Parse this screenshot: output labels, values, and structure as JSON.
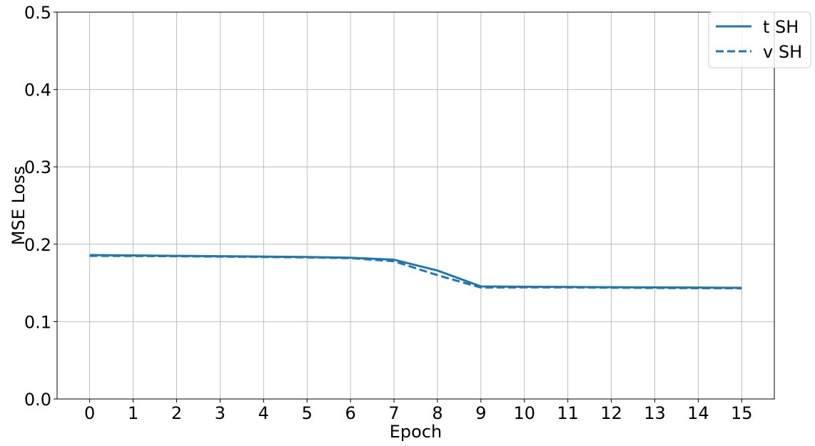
{
  "chart_data": {
    "type": "line",
    "title": "",
    "xlabel": "Epoch",
    "ylabel": "MSE Loss",
    "x": [
      0,
      1,
      2,
      3,
      4,
      5,
      6,
      7,
      8,
      9,
      10,
      11,
      12,
      13,
      14,
      15
    ],
    "x_tick_labels": [
      "0",
      "1",
      "2",
      "3",
      "4",
      "5",
      "6",
      "7",
      "8",
      "9",
      "10",
      "11",
      "12",
      "13",
      "14",
      "15"
    ],
    "y_ticks": [
      0.0,
      0.1,
      0.2,
      0.3,
      0.4,
      0.5
    ],
    "y_tick_labels": [
      "0.0",
      "0.1",
      "0.2",
      "0.3",
      "0.4",
      "0.5"
    ],
    "xlim": [
      -0.75,
      15.75
    ],
    "ylim": [
      0.0,
      0.5
    ],
    "grid": true,
    "legend_position": "top-right",
    "series": [
      {
        "name": "t SH",
        "style": "solid",
        "color": "#1f77b4",
        "values": [
          0.186,
          0.1855,
          0.185,
          0.1845,
          0.184,
          0.1835,
          0.1825,
          0.18,
          0.166,
          0.1455,
          0.145,
          0.1448,
          0.1445,
          0.1442,
          0.144,
          0.1437
        ]
      },
      {
        "name": "v SH",
        "style": "dashed",
        "color": "#1f77b4",
        "values": [
          0.185,
          0.1848,
          0.1845,
          0.184,
          0.1835,
          0.183,
          0.182,
          0.178,
          0.16,
          0.144,
          0.1442,
          0.1442,
          0.1438,
          0.1435,
          0.1432,
          0.143
        ]
      }
    ]
  }
}
